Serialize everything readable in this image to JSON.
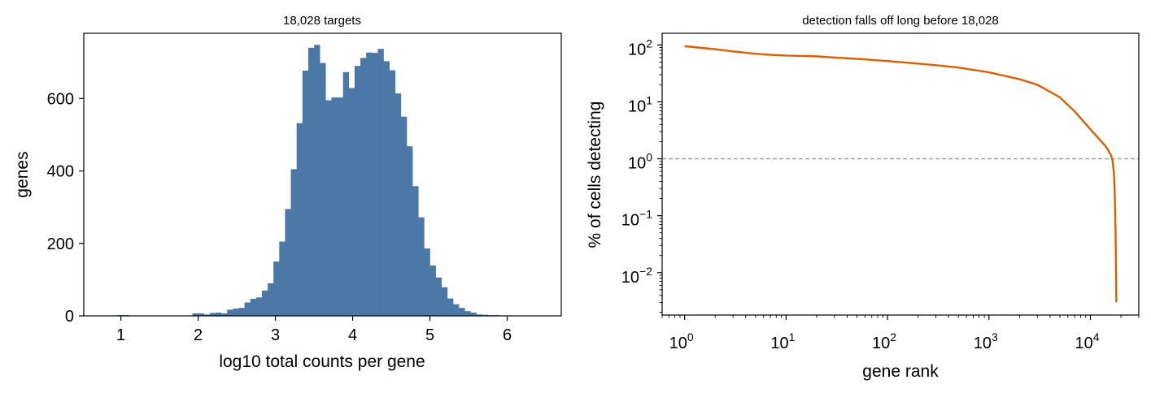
{
  "colors": {
    "histogram": "#4c78a8",
    "curve": "#d95f02",
    "reference_line": "#999999"
  },
  "chart_data": [
    {
      "type": "bar",
      "title": "18,028 targets",
      "xlabel": "log10 total counts per gene",
      "ylabel": "genes",
      "xlim": [
        0.52,
        6.7
      ],
      "ylim": [
        0,
        780
      ],
      "xticks": [
        "1",
        "2",
        "3",
        "4",
        "5",
        "6"
      ],
      "yticks": [
        "0",
        "200",
        "400",
        "600"
      ],
      "bin_edges": [
        0.95,
        1.025,
        1.1,
        1.175,
        1.25,
        1.325,
        1.4,
        1.475,
        1.55,
        1.625,
        1.7,
        1.775,
        1.85,
        1.925,
        2.0,
        2.075,
        2.15,
        2.225,
        2.3,
        2.375,
        2.45,
        2.525,
        2.6,
        2.675,
        2.75,
        2.825,
        2.9,
        2.975,
        3.05,
        3.125,
        3.2,
        3.275,
        3.35,
        3.425,
        3.5,
        3.575,
        3.65,
        3.725,
        3.8,
        3.875,
        3.95,
        4.025,
        4.1,
        4.175,
        4.25,
        4.325,
        4.4,
        4.475,
        4.55,
        4.625,
        4.7,
        4.775,
        4.85,
        4.925,
        5.0,
        5.075,
        5.15,
        5.225,
        5.3,
        5.375,
        5.45,
        5.525,
        5.6,
        5.675,
        5.75,
        5.825,
        5.9,
        5.975
      ],
      "values": [
        2,
        2,
        1,
        0,
        1,
        0,
        1,
        0,
        1,
        0,
        1,
        0,
        0,
        7,
        7,
        4,
        8,
        9,
        7,
        17,
        20,
        22,
        37,
        47,
        51,
        70,
        90,
        150,
        205,
        295,
        405,
        532,
        677,
        740,
        748,
        698,
        595,
        603,
        603,
        673,
        629,
        690,
        712,
        727,
        726,
        737,
        703,
        678,
        614,
        550,
        468,
        358,
        272,
        186,
        139,
        106,
        79,
        48,
        32,
        22,
        13,
        9,
        4,
        3,
        2,
        2,
        1
      ]
    },
    {
      "type": "line",
      "title": "detection falls off long before 18,028",
      "xlabel": "gene rank",
      "ylabel": "% of cells detecting",
      "x_scale": "log",
      "y_scale": "log",
      "xlim": [
        0.6,
        30000
      ],
      "ylim": [
        0.0018,
        160
      ],
      "xticks": [
        {
          "base": "10",
          "exp": "0",
          "value": 1
        },
        {
          "base": "10",
          "exp": "1",
          "value": 10
        },
        {
          "base": "10",
          "exp": "2",
          "value": 100
        },
        {
          "base": "10",
          "exp": "3",
          "value": 1000
        },
        {
          "base": "10",
          "exp": "4",
          "value": 10000
        }
      ],
      "yticks": [
        {
          "base": "10",
          "exp": "−2",
          "value": 0.01
        },
        {
          "base": "10",
          "exp": "−1",
          "value": 0.1
        },
        {
          "base": "10",
          "exp": "0",
          "value": 1
        },
        {
          "base": "10",
          "exp": "1",
          "value": 10
        },
        {
          "base": "10",
          "exp": "2",
          "value": 100
        }
      ],
      "reference_line": {
        "y": 1,
        "style": "dashed"
      },
      "x": [
        1,
        2,
        3,
        5,
        7,
        10,
        20,
        30,
        50,
        100,
        200,
        300,
        500,
        1000,
        2000,
        3000,
        5000,
        7000,
        10000,
        12000,
        14000,
        15000,
        16000,
        16500,
        17000,
        17300,
        17500,
        17700,
        17850,
        17950,
        18000,
        18028
      ],
      "y": [
        95,
        84,
        77,
        70,
        67,
        65,
        63,
        60,
        57,
        52,
        47,
        44,
        40,
        33,
        25,
        20,
        12,
        6.8,
        3.3,
        2.3,
        1.7,
        1.4,
        1.15,
        0.95,
        0.6,
        0.33,
        0.15,
        0.05,
        0.015,
        0.006,
        0.004,
        0.003
      ]
    }
  ]
}
